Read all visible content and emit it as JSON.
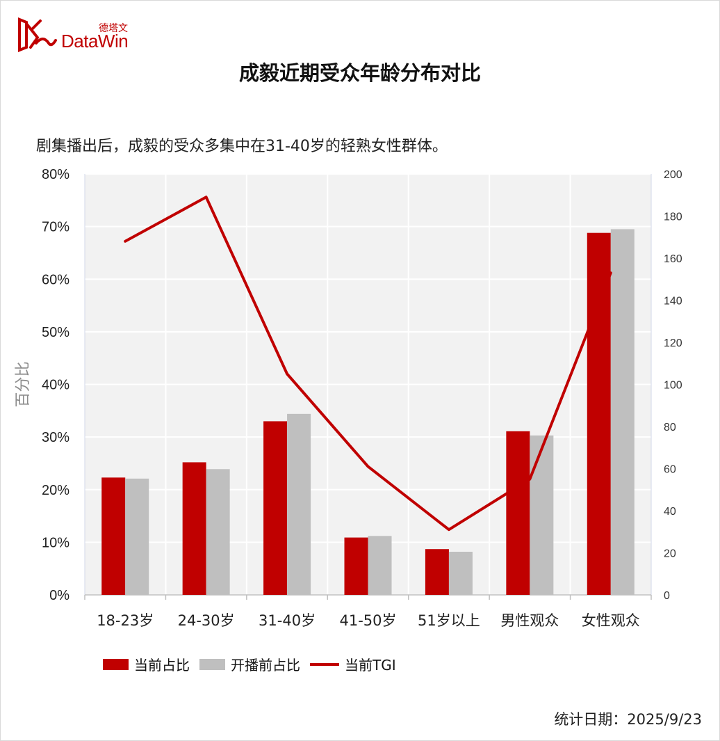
{
  "logo": {
    "brand_text": "DataWin",
    "cn_text": "德塔文",
    "color": "#c00000"
  },
  "title": "成毅近期受众年龄分布对比",
  "subtitle": "剧集播出后，成毅的受众多集中在31-40岁的轻熟女性群体。",
  "footer": {
    "date_text": "统计日期：2025/9/23"
  },
  "chart_data": {
    "type": "bar",
    "categories": [
      "18-23岁",
      "24-30岁",
      "31-40岁",
      "41-50岁",
      "51岁以上",
      "男性观众",
      "女性观众"
    ],
    "series": [
      {
        "name": "当前占比",
        "type": "bar",
        "axis": "left",
        "color": "#c00000",
        "values": [
          22.3,
          25.2,
          33.0,
          10.9,
          8.7,
          31.1,
          68.8
        ]
      },
      {
        "name": "开播前占比",
        "type": "bar",
        "axis": "left",
        "color": "#bfbfbf",
        "values": [
          22.1,
          23.9,
          34.4,
          11.2,
          8.2,
          30.3,
          69.5
        ]
      },
      {
        "name": "当前TGI",
        "type": "line",
        "axis": "right",
        "color": "#c00000",
        "values": [
          168,
          189,
          105,
          61,
          31,
          55,
          153
        ]
      }
    ],
    "ylabel": "百分比",
    "ylim": [
      0,
      80
    ],
    "y_ticks": [
      "0%",
      "10%",
      "20%",
      "30%",
      "40%",
      "50%",
      "60%",
      "70%",
      "80%"
    ],
    "y2lim": [
      0,
      200
    ],
    "y2_ticks": [
      "0",
      "20",
      "40",
      "60",
      "80",
      "100",
      "120",
      "140",
      "160",
      "180",
      "200"
    ],
    "grid": true,
    "legend_position": "bottom-left"
  }
}
